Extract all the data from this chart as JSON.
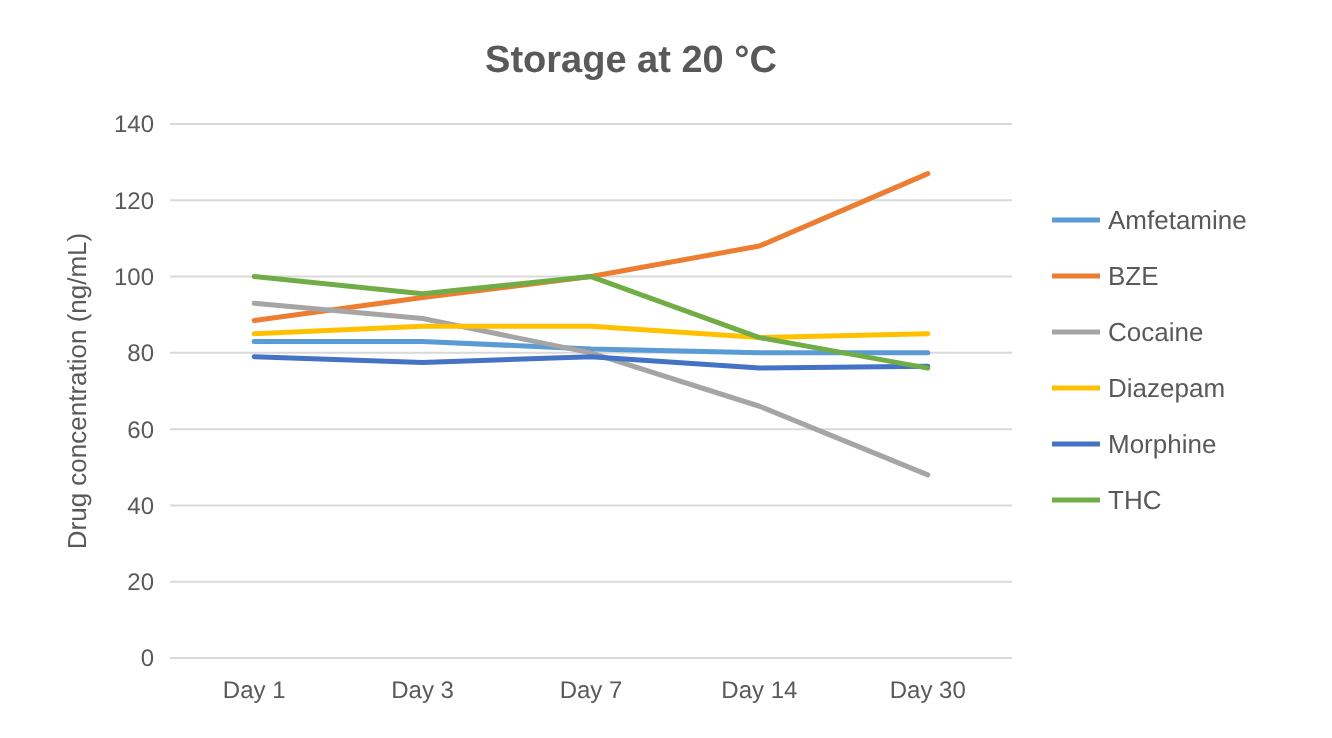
{
  "chart_data": {
    "type": "line",
    "title": "Storage at 20 °C",
    "ylabel": "Drug concentration (ng/mL)",
    "categories": [
      "Day 1",
      "Day 3",
      "Day 7",
      "Day 14",
      "Day 30"
    ],
    "series": [
      {
        "name": "Amfetamine",
        "color": "#5b9bd5",
        "values": [
          83,
          83,
          81,
          80,
          80
        ]
      },
      {
        "name": "BZE",
        "color": "#ed7d31",
        "values": [
          88.5,
          94.5,
          100,
          108,
          127
        ]
      },
      {
        "name": "Cocaine",
        "color": "#a5a5a5",
        "values": [
          93,
          89,
          80,
          66,
          48
        ]
      },
      {
        "name": "Diazepam",
        "color": "#ffc000",
        "values": [
          85,
          87,
          87,
          84,
          85
        ]
      },
      {
        "name": "Morphine",
        "color": "#4472c4",
        "values": [
          79,
          77.5,
          79,
          76,
          76.5
        ]
      },
      {
        "name": "THC",
        "color": "#70ad47",
        "values": [
          100,
          95.5,
          100,
          84,
          76
        ]
      }
    ],
    "ylim": [
      0,
      140
    ],
    "yticks": [
      0,
      20,
      40,
      60,
      80,
      100,
      120,
      140
    ],
    "grid": "y",
    "legend": "right",
    "marker": "none",
    "line_style": "solid"
  }
}
